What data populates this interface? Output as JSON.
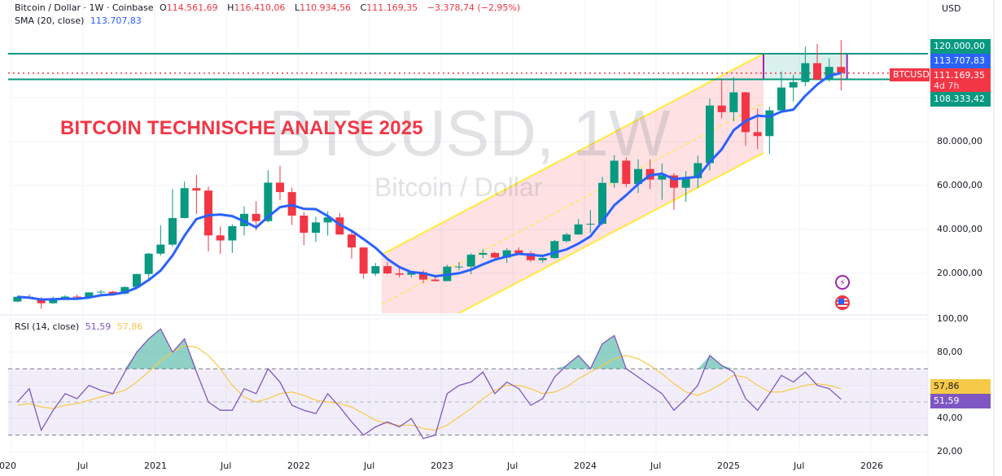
{
  "header": {
    "symbol_desc": "Bitcoin / Dollar · 1W · Coinbase",
    "open_label": "O",
    "open": "114.561,69",
    "high_label": "H",
    "high": "116.410,06",
    "low_label": "L",
    "low": "110.934,56",
    "close_label": "C",
    "close": "111.169,35",
    "change": "−3.378,74 (−2,95%)",
    "sma_label": "SMA (20, close)",
    "sma_value": "113.707,83",
    "rsi_label": "RSI (14, close)",
    "rsi_value": "51,59",
    "rsi_ma_value": "57,86",
    "currency": "USD"
  },
  "overlay": {
    "title": "BITCOIN TECHNISCHE ANALYSE 2025",
    "watermark_symbol": "BTCUSD, 1W",
    "watermark_name": "Bitcoin / Dollar",
    "icons": [
      "lightning-icon",
      "us-flag-icon"
    ]
  },
  "badges": {
    "level_high": "120.000,00",
    "sma": "113.707,83",
    "last_price": "111.169,35",
    "countdown": "4d 7h",
    "level_low": "108.333,42",
    "symbol_tag": "BTCUSD",
    "rsi_ma": "57,86",
    "rsi": "51,59"
  },
  "colors": {
    "up": "#089981",
    "down": "#f23645",
    "sma": "#2962ff",
    "rsi": "#7e57c2",
    "rsi_ma": "#f7c948",
    "channel": "#ffeb3b",
    "level": "#089981"
  },
  "chart_data": [
    {
      "type": "candlestick",
      "ylabel": "USD",
      "ylim": [
        0,
        130000
      ],
      "yticks": [
        "120.000,00",
        "80.000,00",
        "60.000,00",
        "40.000,00",
        "20.000,00"
      ],
      "xticks": [
        "2020",
        "Jul",
        "2021",
        "Jul",
        "2022",
        "Jul",
        "2023",
        "Jul",
        "2024",
        "Jul",
        "2025",
        "Jul",
        "2026"
      ],
      "grid": true,
      "ohlc_columns": [
        "month",
        "open",
        "high",
        "low",
        "close"
      ],
      "candles": [
        [
          "2020-01",
          7200,
          9580,
          6850,
          9350
        ],
        [
          "2020-02",
          9350,
          10500,
          8450,
          8540
        ],
        [
          "2020-03",
          8540,
          9190,
          3850,
          6410
        ],
        [
          "2020-04",
          6410,
          9460,
          6150,
          8630
        ],
        [
          "2020-05",
          8630,
          10080,
          8100,
          9450
        ],
        [
          "2020-06",
          9450,
          10380,
          8910,
          9140
        ],
        [
          "2020-07",
          9140,
          11450,
          8960,
          11350
        ],
        [
          "2020-08",
          11350,
          12480,
          10530,
          11650
        ],
        [
          "2020-09",
          11650,
          12070,
          9880,
          10780
        ],
        [
          "2020-10",
          10780,
          14100,
          10380,
          13800
        ],
        [
          "2020-11",
          13800,
          19900,
          13200,
          19700
        ],
        [
          "2020-12",
          19700,
          29300,
          17600,
          29000
        ],
        [
          "2021-01",
          29000,
          41950,
          28100,
          33100
        ],
        [
          "2021-02",
          33100,
          58350,
          32300,
          45200
        ],
        [
          "2021-03",
          45200,
          61800,
          45000,
          58800
        ],
        [
          "2021-04",
          58800,
          64900,
          47000,
          57700
        ],
        [
          "2021-05",
          57700,
          59500,
          30000,
          37300
        ],
        [
          "2021-06",
          37300,
          41300,
          28800,
          35000
        ],
        [
          "2021-07",
          35000,
          42300,
          29300,
          41500
        ],
        [
          "2021-08",
          41500,
          50500,
          37300,
          47100
        ],
        [
          "2021-09",
          47100,
          52900,
          39600,
          43800
        ],
        [
          "2021-10",
          43800,
          67000,
          43300,
          61300
        ],
        [
          "2021-11",
          61300,
          69000,
          53300,
          57000
        ],
        [
          "2021-12",
          57000,
          59100,
          42000,
          46300
        ],
        [
          "2022-01",
          46300,
          47900,
          32900,
          38500
        ],
        [
          "2022-02",
          38500,
          45800,
          34300,
          43200
        ],
        [
          "2022-03",
          43200,
          48200,
          37200,
          45500
        ],
        [
          "2022-04",
          45500,
          47400,
          37600,
          37700
        ],
        [
          "2022-05",
          37700,
          40000,
          26700,
          31800
        ],
        [
          "2022-06",
          31800,
          31900,
          17600,
          19900
        ],
        [
          "2022-07",
          19900,
          24700,
          18800,
          23300
        ],
        [
          "2022-08",
          23300,
          25200,
          19600,
          20000
        ],
        [
          "2022-09",
          20000,
          22800,
          18200,
          19400
        ],
        [
          "2022-10",
          19400,
          21000,
          18200,
          20500
        ],
        [
          "2022-11",
          20500,
          21500,
          15500,
          17200
        ],
        [
          "2022-12",
          17200,
          18400,
          16300,
          16500
        ],
        [
          "2023-01",
          16500,
          23900,
          16500,
          23100
        ],
        [
          "2023-02",
          23100,
          25250,
          21400,
          23100
        ],
        [
          "2023-03",
          23100,
          29200,
          19600,
          28500
        ],
        [
          "2023-04",
          28500,
          31000,
          26900,
          29300
        ],
        [
          "2023-05",
          29300,
          29800,
          25800,
          27200
        ],
        [
          "2023-06",
          27200,
          31400,
          24800,
          30500
        ],
        [
          "2023-07",
          30500,
          31800,
          28900,
          29200
        ],
        [
          "2023-08",
          29200,
          30200,
          25200,
          26000
        ],
        [
          "2023-09",
          26000,
          27500,
          24900,
          27000
        ],
        [
          "2023-10",
          27000,
          35200,
          26600,
          34700
        ],
        [
          "2023-11",
          34700,
          38400,
          34100,
          37700
        ],
        [
          "2023-12",
          37700,
          44700,
          37600,
          42300
        ],
        [
          "2024-01",
          42300,
          48900,
          38500,
          42600
        ],
        [
          "2024-02",
          42600,
          64000,
          41900,
          61200
        ],
        [
          "2024-03",
          61200,
          73800,
          59000,
          71300
        ],
        [
          "2024-04",
          71300,
          72800,
          59200,
          60700
        ],
        [
          "2024-05",
          60700,
          71900,
          56600,
          67500
        ],
        [
          "2024-06",
          67500,
          72000,
          58400,
          62700
        ],
        [
          "2024-07",
          62700,
          70000,
          53500,
          64600
        ],
        [
          "2024-08",
          64600,
          65600,
          49000,
          59000
        ],
        [
          "2024-09",
          59000,
          66500,
          52600,
          63300
        ],
        [
          "2024-10",
          63300,
          73600,
          58900,
          70200
        ],
        [
          "2024-11",
          70200,
          99600,
          66800,
          96400
        ],
        [
          "2024-12",
          96400,
          108300,
          90500,
          93400
        ],
        [
          "2025-01",
          93400,
          109300,
          89200,
          102400
        ],
        [
          "2025-02",
          102400,
          102700,
          78200,
          84300
        ],
        [
          "2025-03",
          84300,
          95000,
          76600,
          82500
        ],
        [
          "2025-04",
          82500,
          95800,
          74400,
          94200
        ],
        [
          "2025-05",
          94200,
          111900,
          93300,
          104600
        ],
        [
          "2025-06",
          104600,
          110500,
          98200,
          107100
        ],
        [
          "2025-07",
          107100,
          123200,
          105100,
          115700
        ],
        [
          "2025-08",
          115700,
          124500,
          108000,
          108200
        ],
        [
          "2025-09",
          108200,
          117900,
          107300,
          114000
        ],
        [
          "2025-10",
          114000,
          126200,
          103300,
          111169.35
        ]
      ],
      "sma_period_weeks": 20,
      "levels": [
        120000,
        108333.42
      ],
      "last_price": 111169.35,
      "channel": {
        "start": "2022-08",
        "end": "2025-04",
        "upper": [
          28500,
          120000
        ],
        "lower": [
          -16700,
          74800
        ]
      },
      "range_box": {
        "start": "2025-04",
        "end": "2025-11",
        "top": 120000,
        "bottom": 108333.42
      }
    },
    {
      "type": "line",
      "ylabel": "RSI",
      "ylim": [
        15,
        100
      ],
      "yticks": [
        "100,00",
        "80,00",
        "40,00",
        "20,00"
      ],
      "bands": [
        70,
        50,
        30
      ],
      "rsi": [
        50,
        58,
        33,
        45,
        55,
        52,
        60,
        57,
        55,
        68,
        80,
        88,
        94,
        80,
        88,
        68,
        50,
        45,
        45,
        58,
        55,
        70,
        62,
        48,
        45,
        43,
        55,
        47,
        38,
        30,
        35,
        38,
        35,
        40,
        28,
        30,
        55,
        60,
        62,
        68,
        55,
        62,
        58,
        48,
        52,
        65,
        72,
        78,
        70,
        85,
        90,
        70,
        65,
        60,
        55,
        45,
        52,
        60,
        78,
        72,
        68,
        52,
        45,
        55,
        66,
        62,
        68,
        60,
        58,
        51.59
      ],
      "rsi_ma": [
        48,
        49,
        47,
        46,
        48,
        49,
        51,
        53,
        55,
        57,
        62,
        68,
        75,
        80,
        84,
        83,
        78,
        70,
        60,
        53,
        50,
        52,
        55,
        56,
        54,
        51,
        50,
        49,
        47,
        43,
        39,
        37,
        36,
        36,
        34,
        33,
        36,
        41,
        46,
        52,
        57,
        60,
        60,
        58,
        55,
        56,
        59,
        64,
        68,
        72,
        76,
        78,
        76,
        72,
        67,
        61,
        56,
        54,
        57,
        61,
        66,
        65,
        60,
        56,
        56,
        58,
        60,
        61,
        60,
        57.86
      ]
    }
  ]
}
